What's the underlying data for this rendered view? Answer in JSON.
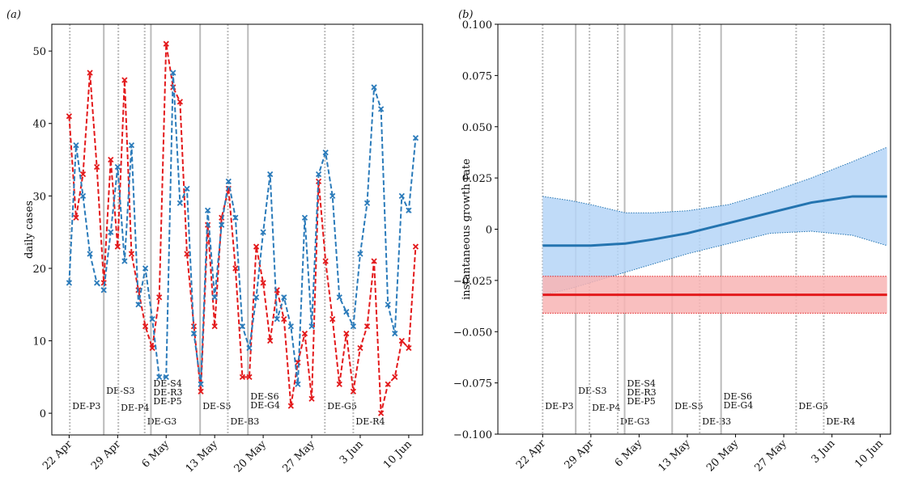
{
  "chart_data": [
    {
      "type": "line",
      "title": "(a)",
      "ylabel": "daily cases",
      "x": [
        0,
        1,
        2,
        3,
        4,
        5,
        6,
        7,
        8,
        9,
        10,
        11,
        12,
        13,
        14,
        15,
        16,
        17,
        18,
        19,
        20,
        21,
        22,
        23,
        24,
        25,
        26,
        27,
        28,
        29,
        30,
        31,
        32,
        33,
        34,
        35,
        36,
        37,
        38,
        39,
        40,
        41,
        42,
        43,
        44,
        45,
        46,
        47,
        48,
        49,
        50
      ],
      "series": [
        {
          "color": "#e31a1c",
          "values": [
            41,
            27,
            33,
            47,
            34,
            18,
            35,
            23,
            46,
            22,
            17,
            12,
            9,
            16,
            51,
            45,
            43,
            22,
            12,
            3,
            26,
            12,
            27,
            31,
            20,
            5,
            5,
            23,
            18,
            10,
            17,
            13,
            1,
            7,
            11,
            2,
            32,
            21,
            13,
            4,
            11,
            3,
            9,
            12,
            21,
            0,
            4,
            5,
            10,
            9,
            23
          ]
        },
        {
          "color": "#2b7bba",
          "values": [
            18,
            37,
            30,
            22,
            18,
            17,
            25,
            34,
            21,
            37,
            15,
            20,
            13,
            5,
            5,
            47,
            29,
            31,
            11,
            4,
            28,
            16,
            26,
            32,
            27,
            12,
            9,
            16,
            25,
            33,
            13,
            16,
            12,
            4,
            27,
            12,
            33,
            36,
            30,
            16,
            14,
            12,
            22,
            29,
            45,
            42,
            15,
            11,
            30,
            28,
            38
          ]
        }
      ],
      "xlim": [
        -2.5,
        51
      ],
      "xticks": [
        {
          "value": 0,
          "label": "22 Apr"
        },
        {
          "value": 7,
          "label": "29 Apr"
        },
        {
          "value": 14,
          "label": "6 May"
        },
        {
          "value": 21,
          "label": "13 May"
        },
        {
          "value": 28,
          "label": "20 May"
        },
        {
          "value": 35,
          "label": "27 May"
        },
        {
          "value": 42,
          "label": "3 Jun"
        },
        {
          "value": 49,
          "label": "10 Jun"
        }
      ],
      "ylim": [
        -3,
        53.7
      ],
      "yticks": [
        0,
        10,
        20,
        30,
        40,
        50
      ],
      "events": [
        {
          "x": 0.1,
          "style": "dotted",
          "label": [
            "DE-P3"
          ]
        },
        {
          "x": 5,
          "style": "solid",
          "label": [
            "DE-S3"
          ]
        },
        {
          "x": 7.1,
          "style": "dotted",
          "label": [
            "DE-P4"
          ]
        },
        {
          "x": 10.9,
          "style": "dotted",
          "label": [
            "DE-G3"
          ]
        },
        {
          "x": 11.8,
          "style": "solid",
          "label": [
            "DE-S4",
            "DE-R3",
            "DE-P5"
          ]
        },
        {
          "x": 18.9,
          "style": "solid",
          "label": [
            "DE-S5"
          ]
        },
        {
          "x": 22.9,
          "style": "dotted",
          "label": [
            "DE-B3"
          ]
        },
        {
          "x": 25.8,
          "style": "solid",
          "label": [
            "DE-S6",
            "DE-G4"
          ]
        },
        {
          "x": 36.9,
          "style": "dotted",
          "label": [
            "DE-G5"
          ]
        },
        {
          "x": 41,
          "style": "dotted",
          "label": [
            "DE-R4"
          ]
        }
      ]
    },
    {
      "type": "line",
      "title": "(b)",
      "ylabel": "instantaneous growth rate",
      "x": [
        0,
        4,
        7,
        12,
        16,
        21,
        27,
        33,
        39,
        45,
        50
      ],
      "series": [
        {
          "color": "#2474b0",
          "fill": "#b5d5f7",
          "values": [
            -0.008,
            -0.008,
            -0.008,
            -0.007,
            -0.005,
            -0.002,
            0.003,
            0.008,
            0.013,
            0.016,
            0.016
          ],
          "upper": [
            0.016,
            0.014,
            0.012,
            0.008,
            0.008,
            0.009,
            0.012,
            0.018,
            0.025,
            0.033,
            0.04
          ],
          "lower": [
            -0.032,
            -0.029,
            -0.026,
            -0.021,
            -0.017,
            -0.012,
            -0.007,
            -0.002,
            -0.001,
            -0.003,
            -0.008
          ]
        },
        {
          "color": "#e31a1c",
          "fill": "#f8b4b4",
          "values": [
            -0.032,
            -0.032,
            -0.032,
            -0.032,
            -0.032,
            -0.032,
            -0.032,
            -0.032,
            -0.032,
            -0.032,
            -0.032
          ],
          "upper": [
            -0.023,
            -0.023,
            -0.023,
            -0.023,
            -0.023,
            -0.023,
            -0.023,
            -0.023,
            -0.023,
            -0.023,
            -0.023
          ],
          "lower": [
            -0.041,
            -0.041,
            -0.041,
            -0.041,
            -0.041,
            -0.041,
            -0.041,
            -0.041,
            -0.041,
            -0.041,
            -0.041
          ]
        }
      ],
      "xlim": [
        -6.5,
        50.5
      ],
      "xticks": [
        {
          "value": 0,
          "label": "22 Apr"
        },
        {
          "value": 7,
          "label": "29 Apr"
        },
        {
          "value": 14,
          "label": "6 May"
        },
        {
          "value": 21,
          "label": "13 May"
        },
        {
          "value": 28,
          "label": "20 May"
        },
        {
          "value": 35,
          "label": "27 May"
        },
        {
          "value": 42,
          "label": "3 Jun"
        },
        {
          "value": 49,
          "label": "10 Jun"
        }
      ],
      "ylim": [
        -0.1,
        0.1
      ],
      "yticks": [
        {
          "value": -0.1,
          "label": "−0.100"
        },
        {
          "value": -0.075,
          "label": "−0.075"
        },
        {
          "value": -0.05,
          "label": "−0.050"
        },
        {
          "value": -0.025,
          "label": "−0.025"
        },
        {
          "value": 0,
          "label": "0"
        },
        {
          "value": 0.025,
          "label": "0.025"
        },
        {
          "value": 0.05,
          "label": "0.050"
        },
        {
          "value": 0.075,
          "label": "0.075"
        },
        {
          "value": 0.1,
          "label": "0.100"
        }
      ],
      "events": [
        {
          "x": 0,
          "style": "dotted",
          "label": [
            "DE-P3"
          ]
        },
        {
          "x": 4.8,
          "style": "solid",
          "label": [
            "DE-S3"
          ]
        },
        {
          "x": 6.8,
          "style": "dotted",
          "label": [
            "DE-P4"
          ]
        },
        {
          "x": 10.9,
          "style": "dotted",
          "label": [
            "DE-G3"
          ]
        },
        {
          "x": 11.9,
          "style": "solid",
          "label": [
            "DE-S4",
            "DE-R3",
            "DE-P5"
          ]
        },
        {
          "x": 18.8,
          "style": "solid",
          "label": [
            "DE-S5"
          ]
        },
        {
          "x": 22.8,
          "style": "dotted",
          "label": [
            "DE-B3"
          ]
        },
        {
          "x": 25.9,
          "style": "solid",
          "label": [
            "DE-S6",
            "DE-G4"
          ]
        },
        {
          "x": 36.8,
          "style": "dotted",
          "label": [
            "DE-G5"
          ]
        },
        {
          "x": 40.8,
          "style": "dotted",
          "label": [
            "DE-R4"
          ]
        }
      ]
    }
  ]
}
